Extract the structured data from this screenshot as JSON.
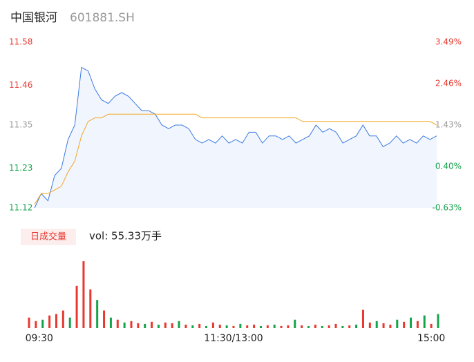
{
  "header": {
    "name": "中国银河",
    "code": "601881.SH"
  },
  "chart_data": [
    {
      "type": "line",
      "x": [
        0,
        4,
        8,
        12,
        16,
        20,
        24,
        28,
        32,
        36,
        40,
        44,
        48,
        52,
        56,
        60,
        64,
        68,
        72,
        76,
        80,
        84,
        88,
        92,
        96,
        100,
        104,
        108,
        112,
        116,
        120,
        124,
        128,
        132,
        136,
        140,
        144,
        148,
        152,
        156,
        160,
        164,
        168,
        172,
        176,
        180,
        184,
        188,
        192,
        196,
        200,
        204,
        208,
        212,
        216,
        220,
        224,
        228,
        232,
        236,
        240
      ],
      "xlim": [
        0,
        240
      ],
      "ylim": [
        11.12,
        11.58
      ],
      "yticks": [
        11.58,
        11.46,
        11.35,
        11.23,
        11.12
      ],
      "ytick_colors": [
        "#e8382f",
        "#e8382f",
        "#999999",
        "#13a34a",
        "#13a34a"
      ],
      "y2lim": [
        -0.63,
        3.49
      ],
      "y2ticks": [
        {
          "value": 3.49,
          "label": "3.49%"
        },
        {
          "value": 2.46,
          "label": "2.46%"
        },
        {
          "value": 1.43,
          "label": "1.43%"
        },
        {
          "value": 0.4,
          "label": "0.40%"
        },
        {
          "value": -0.63,
          "label": "-0.63%"
        }
      ],
      "series": [
        {
          "color": "#3b7ae0",
          "fill": "#f1f5fd",
          "values": [
            11.12,
            11.16,
            11.14,
            11.21,
            11.23,
            11.31,
            11.35,
            11.51,
            11.5,
            11.45,
            11.42,
            11.41,
            11.43,
            11.44,
            11.43,
            11.41,
            11.39,
            11.39,
            11.38,
            11.35,
            11.34,
            11.35,
            11.35,
            11.34,
            11.31,
            11.3,
            11.31,
            11.3,
            11.32,
            11.3,
            11.31,
            11.3,
            11.33,
            11.33,
            11.3,
            11.32,
            11.32,
            11.31,
            11.32,
            11.3,
            11.31,
            11.32,
            11.35,
            11.33,
            11.34,
            11.33,
            11.3,
            11.31,
            11.32,
            11.35,
            11.32,
            11.32,
            11.29,
            11.3,
            11.32,
            11.3,
            11.31,
            11.3,
            11.32,
            11.31,
            11.32
          ]
        },
        {
          "color": "#f5a623",
          "values": [
            11.13,
            11.16,
            11.16,
            11.17,
            11.18,
            11.22,
            11.25,
            11.32,
            11.36,
            11.37,
            11.37,
            11.38,
            11.38,
            11.38,
            11.38,
            11.38,
            11.38,
            11.38,
            11.38,
            11.38,
            11.38,
            11.38,
            11.38,
            11.38,
            11.38,
            11.37,
            11.37,
            11.37,
            11.37,
            11.37,
            11.37,
            11.37,
            11.37,
            11.37,
            11.37,
            11.37,
            11.37,
            11.37,
            11.37,
            11.37,
            11.36,
            11.36,
            11.36,
            11.36,
            11.36,
            11.36,
            11.36,
            11.36,
            11.36,
            11.36,
            11.36,
            11.36,
            11.36,
            11.36,
            11.36,
            11.36,
            11.36,
            11.36,
            11.36,
            11.36,
            11.35
          ]
        }
      ]
    },
    {
      "type": "bar",
      "title": "日成交量",
      "subtitle": "vol: 55.33万手",
      "x": [
        0,
        4,
        8,
        12,
        16,
        20,
        24,
        28,
        32,
        36,
        40,
        44,
        48,
        52,
        56,
        60,
        64,
        68,
        72,
        76,
        80,
        84,
        88,
        92,
        96,
        100,
        104,
        108,
        112,
        116,
        120,
        124,
        128,
        132,
        136,
        140,
        144,
        148,
        152,
        156,
        160,
        164,
        168,
        172,
        176,
        180,
        184,
        188,
        192,
        196,
        200,
        204,
        208,
        212,
        216,
        220,
        224,
        228,
        232,
        236,
        240
      ],
      "xlim": [
        0,
        240
      ],
      "xticks": [
        {
          "value": 6,
          "label": "09:30"
        },
        {
          "value": 120,
          "label": "11:30/13:00"
        },
        {
          "value": 236,
          "label": "15:00"
        }
      ],
      "ylim": [
        0,
        100
      ],
      "values": [
        15,
        10,
        12,
        18,
        20,
        25,
        15,
        60,
        95,
        55,
        40,
        25,
        15,
        12,
        8,
        10,
        7,
        6,
        9,
        5,
        8,
        7,
        10,
        5,
        4,
        6,
        3,
        8,
        5,
        4,
        3,
        6,
        4,
        5,
        3,
        4,
        5,
        3,
        4,
        12,
        4,
        3,
        5,
        3,
        4,
        6,
        3,
        4,
        5,
        26,
        8,
        10,
        7,
        5,
        12,
        9,
        15,
        10,
        18,
        6,
        20
      ],
      "colors": [
        "#e8382f",
        "#e8382f",
        "#13a34a",
        "#e8382f",
        "#e8382f",
        "#e8382f",
        "#13a34a",
        "#e8382f",
        "#e8382f",
        "#e8382f",
        "#13a34a",
        "#e8382f",
        "#13a34a",
        "#e8382f",
        "#13a34a",
        "#e8382f",
        "#e8382f",
        "#13a34a",
        "#e8382f",
        "#13a34a",
        "#e8382f",
        "#e8382f",
        "#13a34a",
        "#e8382f",
        "#13a34a",
        "#e8382f",
        "#13a34a",
        "#e8382f",
        "#e8382f",
        "#13a34a",
        "#e8382f",
        "#13a34a",
        "#e8382f",
        "#e8382f",
        "#13a34a",
        "#e8382f",
        "#13a34a",
        "#e8382f",
        "#e8382f",
        "#13a34a",
        "#e8382f",
        "#13a34a",
        "#e8382f",
        "#13a34a",
        "#e8382f",
        "#e8382f",
        "#13a34a",
        "#e8382f",
        "#13a34a",
        "#e8382f",
        "#e8382f",
        "#13a34a",
        "#e8382f",
        "#e8382f",
        "#13a34a",
        "#e8382f",
        "#13a34a",
        "#e8382f",
        "#13a34a",
        "#e8382f",
        "#13a34a"
      ]
    }
  ]
}
